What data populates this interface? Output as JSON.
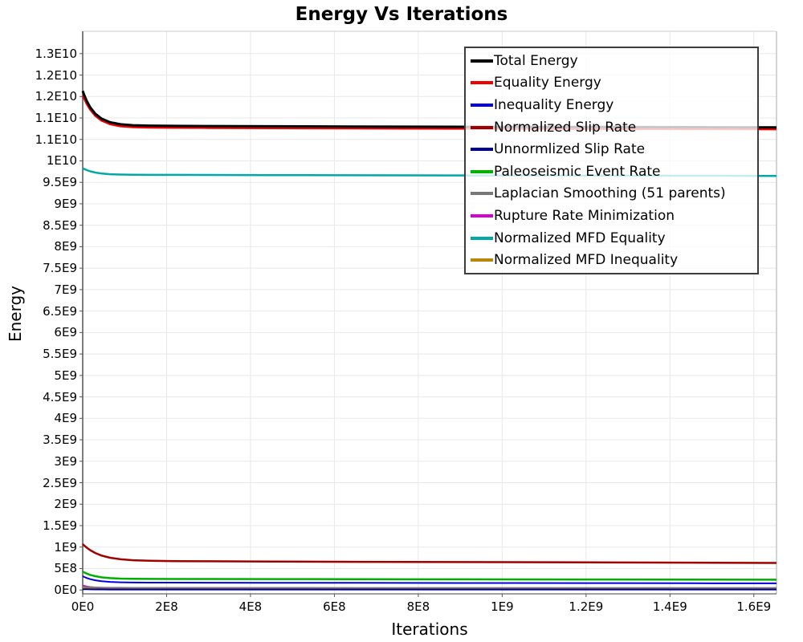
{
  "chart_data": {
    "type": "line",
    "title": "Energy Vs Iterations",
    "xlabel": "Iterations",
    "ylabel": "Energy",
    "grid": true,
    "legend_position": "top-right-inside",
    "x_axis": {
      "min": 0,
      "max": 1654000000.0,
      "ticks": [
        {
          "value": 0,
          "label": "0E0"
        },
        {
          "value": 200000000.0,
          "label": "2E8"
        },
        {
          "value": 400000000.0,
          "label": "4E8"
        },
        {
          "value": 600000000.0,
          "label": "6E8"
        },
        {
          "value": 800000000.0,
          "label": "8E8"
        },
        {
          "value": 1000000000.0,
          "label": "1E9"
        },
        {
          "value": 1200000000.0,
          "label": "1.2E9"
        },
        {
          "value": 1400000000.0,
          "label": "1.4E9"
        },
        {
          "value": 1600000000.0,
          "label": "1.6E9"
        }
      ]
    },
    "y_axis": {
      "min": -90000000.0,
      "max": 13020000000.0,
      "ticks": [
        {
          "value": 0,
          "label": "0E0"
        },
        {
          "value": 500000000.0,
          "label": "5E8"
        },
        {
          "value": 1000000000.0,
          "label": "1E9"
        },
        {
          "value": 1500000000.0,
          "label": "1.5E9"
        },
        {
          "value": 2000000000.0,
          "label": "2E9"
        },
        {
          "value": 2500000000.0,
          "label": "2.5E9"
        },
        {
          "value": 3000000000.0,
          "label": "3E9"
        },
        {
          "value": 3500000000.0,
          "label": "3.5E9"
        },
        {
          "value": 4000000000.0,
          "label": "4E9"
        },
        {
          "value": 4500000000.0,
          "label": "4.5E9"
        },
        {
          "value": 5000000000.0,
          "label": "5E9"
        },
        {
          "value": 5500000000.0,
          "label": "5.5E9"
        },
        {
          "value": 6000000000.0,
          "label": "6E9"
        },
        {
          "value": 6500000000.0,
          "label": "6.5E9"
        },
        {
          "value": 7000000000.0,
          "label": "7E9"
        },
        {
          "value": 7500000000.0,
          "label": "7.5E9"
        },
        {
          "value": 8000000000.0,
          "label": "8E9"
        },
        {
          "value": 8500000000.0,
          "label": "8.5E9"
        },
        {
          "value": 9000000000.0,
          "label": "9E9"
        },
        {
          "value": 9500000000.0,
          "label": "9.5E9"
        },
        {
          "value": 10000000000.0,
          "label": "1E10"
        },
        {
          "value": 10500000000.0,
          "label": "1.1E10"
        },
        {
          "value": 11000000000.0,
          "label": "1.1E10"
        },
        {
          "value": 11500000000.0,
          "label": "1.2E10"
        },
        {
          "value": 12000000000.0,
          "label": "1.2E10"
        },
        {
          "value": 12500000000.0,
          "label": "1.3E10"
        }
      ]
    },
    "x_values": [
      0,
      4000000.0,
      10000000.0,
      18000000.0,
      30000000.0,
      45000000.0,
      65000000.0,
      90000000.0,
      120000000.0,
      160000000.0,
      220000000.0,
      300000000.0,
      450000000.0,
      650000000.0,
      900000000.0,
      1200000000.0,
      1450000000.0,
      1654000000.0
    ],
    "series": [
      {
        "id": "total-energy",
        "name": "Total Energy",
        "color": "#000000",
        "width": 3,
        "values": [
          11630000000.0,
          11523000000.0,
          11389000000.0,
          11247000000.0,
          11098000000.0,
          10983000000.0,
          10900000000.0,
          10852000000.0,
          10830000000.0,
          10820000000.0,
          10815000000.0,
          10812000000.0,
          10806000000.0,
          10800000000.0,
          10795000000.0,
          10790000000.0,
          10785000000.0,
          10780000000.0
        ]
      },
      {
        "id": "equality-energy",
        "name": "Equality Energy",
        "color": "#f00000",
        "width": 3,
        "values": [
          11520000000.0,
          11450000000.0,
          11330000000.0,
          11200000000.0,
          11055000000.0,
          10942000000.0,
          10860000000.0,
          10812000000.0,
          10790000000.0,
          10780000000.0,
          10775000000.0,
          10772000000.0,
          10766000000.0,
          10760000000.0,
          10755000000.0,
          10750000000.0,
          10745000000.0,
          10740000000.0
        ]
      },
      {
        "id": "inequality-energy",
        "name": "Inequality Energy",
        "color": "#0000e0",
        "width": 2,
        "values": [
          320000000.0,
          302000000.0,
          278000000.0,
          253000000.0,
          226000000.0,
          205000000.0,
          189000000.0,
          179000000.0,
          174500000.0,
          172500000.0,
          171500000.0,
          170500000.0,
          169000000.0,
          166000000.0,
          163000000.0,
          160000000.0,
          157500000.0,
          155000000.0
        ]
      },
      {
        "id": "normalized-slip-rate",
        "name": "Normalized Slip Rate",
        "color": "#a00000",
        "width": 2.5,
        "values": [
          1070000000.0,
          1032000000.0,
          983000000.0,
          927000000.0,
          861000000.0,
          803000000.0,
          752000000.0,
          716000000.0,
          694000000.0,
          681000000.0,
          672500000.0,
          669000000.0,
          663000000.0,
          657000000.0,
          650000000.0,
          643000000.0,
          637000000.0,
          630000000.0
        ]
      },
      {
        "id": "unnormalized-slip-rate",
        "name": "Unnormlized Slip Rate",
        "color": "#000080",
        "width": 2,
        "values": [
          18000000.0,
          17200000.0,
          16000000.0,
          14800000.0,
          13500000.0,
          12500000.0,
          11800000.0,
          11300000.0,
          11100000.0,
          11000000.0,
          11000000.0,
          10900000.0,
          10800000.0,
          10700000.0,
          10600000.0,
          10500000.0,
          10500000.0,
          10400000.0
        ]
      },
      {
        "id": "paleoseismic-event-rate",
        "name": "Paleoseismic Event Rate",
        "color": "#00b000",
        "width": 2.5,
        "values": [
          430000000.0,
          408000000.0,
          381000000.0,
          352000000.0,
          321000000.0,
          296000000.0,
          277000000.0,
          266000000.0,
          261000000.0,
          258000000.0,
          256500000.0,
          255500000.0,
          254000000.0,
          251000000.0,
          248000000.0,
          245000000.0,
          242500000.0,
          240000000.0
        ]
      },
      {
        "id": "laplacian-smoothing",
        "name": "Laplacian Smoothing (51 parents)",
        "color": "#777777",
        "width": 2,
        "values": [
          75000000.0,
          71700000.0,
          67500000.0,
          63700000.0,
          59200000.0,
          55600000.0,
          52900000.0,
          51300000.0,
          50500000.0,
          50100000.0,
          49900000.0,
          49700000.0,
          49400000.0,
          49000000.0,
          48700000.0,
          48400000.0,
          48200000.0,
          48000000.0
        ]
      },
      {
        "id": "rupture-rate-minimization",
        "name": "Rupture Rate Minimization",
        "color": "#d400d4",
        "width": 2,
        "values": [
          100000000.0,
          95100000.0,
          80000000.0,
          69400000.0,
          58000000.0,
          50000000.0,
          44500000.0,
          41700000.0,
          40500000.0,
          40000000.0,
          39600000.0,
          39200000.0,
          38500000.0,
          37800000.0,
          37000000.0,
          36200000.0,
          35500000.0,
          34000000.0
        ]
      },
      {
        "id": "normalized-mfd-equality",
        "name": "Normalized MFD Equality",
        "color": "#00a8a8",
        "width": 2.5,
        "values": [
          9830000000.0,
          9809000000.0,
          9784000000.0,
          9757000000.0,
          9728000000.0,
          9706000000.0,
          9690000000.0,
          9681000000.0,
          9677000000.0,
          9675000000.0,
          9674000000.0,
          9672000000.0,
          9669000000.0,
          9665000000.0,
          9661000000.0,
          9657000000.0,
          9653000000.0,
          9650000000.0
        ]
      },
      {
        "id": "normalized-mfd-inequality",
        "name": "Normalized MFD Inequality",
        "color": "#b8860b",
        "width": 2.5,
        "values": [
          30000000.0,
          29000000.0,
          27500000.0,
          26000000.0,
          24500000.0,
          23500000.0,
          22800000.0,
          22400000.0,
          22200000.0,
          22100000.0,
          22000000.0,
          22000000.0,
          21900000.0,
          21800000.0,
          21700000.0,
          21600000.0,
          21500000.0,
          21500000.0
        ]
      }
    ]
  }
}
